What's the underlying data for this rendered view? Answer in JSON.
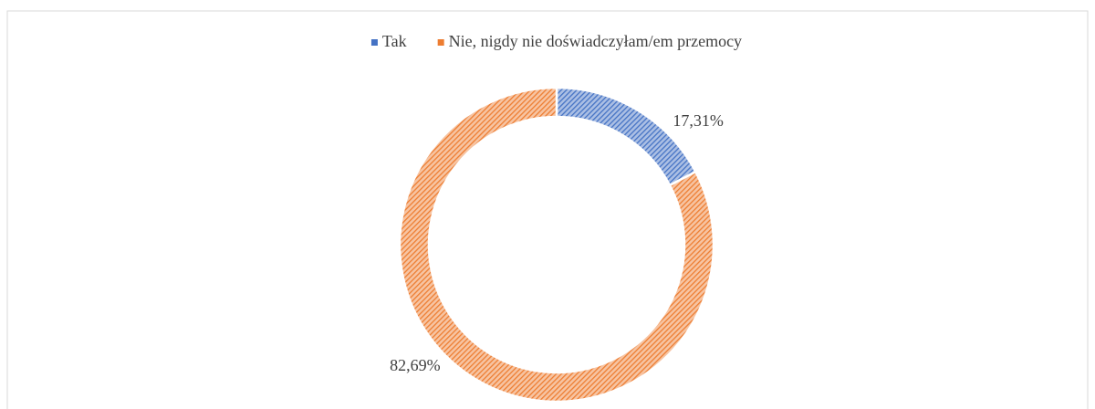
{
  "chart_data": {
    "type": "donut",
    "categories": [
      "Tak",
      "Nie, nigdy nie doświadczyłam/em przemocy"
    ],
    "values": [
      17.31,
      82.69
    ],
    "value_labels": [
      "17,31%",
      "82,69%"
    ],
    "colors": [
      "#4472c4",
      "#ed7d31"
    ],
    "legend": "top"
  }
}
